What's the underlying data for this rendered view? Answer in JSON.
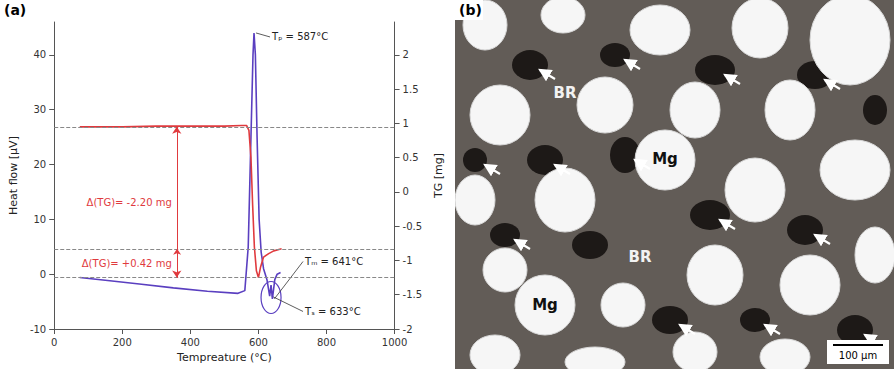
{
  "chart_data": {
    "type": "line",
    "panel_label": "(a)",
    "xlabel": "Tempreature (°C)",
    "ylabel": "Heat flow [μV]",
    "y2label": "TG [mg]",
    "xlim": [
      0,
      1000
    ],
    "xticks": [
      0,
      200,
      400,
      600,
      800,
      1000
    ],
    "ylim": [
      -10,
      46
    ],
    "yticks": [
      -10,
      0,
      10,
      20,
      30,
      40
    ],
    "y2lim": [
      -2,
      2.48
    ],
    "y2ticks": [
      -2,
      -1.5,
      -1,
      -0.5,
      0,
      0.5,
      1,
      1.5,
      2
    ],
    "grid": false,
    "series": [
      {
        "color": "#5a3fc0",
        "axis": "y",
        "x": [
          75,
          150,
          250,
          350,
          450,
          540,
          560,
          570,
          578,
          584,
          587,
          591,
          596,
          602,
          608,
          615,
          625,
          633,
          637,
          641,
          648,
          655,
          665
        ],
        "values": [
          -0.6,
          -1.1,
          -1.8,
          -2.5,
          -3.1,
          -3.5,
          -3.0,
          5,
          25,
          40,
          44,
          40,
          25,
          10,
          4,
          1,
          -1,
          -4,
          -2,
          -4.5,
          -1,
          0,
          0.3
        ]
      },
      {
        "color": "#e03a3e",
        "axis": "y2",
        "x": [
          75,
          200,
          300,
          400,
          500,
          550,
          565,
          572,
          578,
          583,
          588,
          594,
          600,
          606,
          615,
          630,
          645,
          660,
          668
        ],
        "values": [
          0.95,
          0.95,
          0.96,
          0.96,
          0.96,
          0.97,
          0.97,
          0.9,
          0.5,
          -0.2,
          -0.8,
          -1.15,
          -1.25,
          -1.1,
          -0.95,
          -0.9,
          -0.86,
          -0.84,
          -0.83
        ]
      }
    ],
    "annotations": [
      {
        "text": "Tₚ = 587°C",
        "x": 587,
        "y": 44
      },
      {
        "text": "Tₘ = 641°C",
        "x": 641,
        "y": -4.5
      },
      {
        "text": "Tₛ = 633°C",
        "x": 633,
        "y": -4
      }
    ],
    "tg_annotations": [
      {
        "text": "Δ(TG)= -2.20 mg",
        "color": "#e03a3e"
      },
      {
        "text": "Δ(TG)= +0.42 mg",
        "color": "#e03a3e"
      }
    ]
  },
  "micrograph": {
    "panel_label": "(b)",
    "labels": [
      "BR",
      "Mg",
      "BR",
      "Mg"
    ],
    "scale_bar": "100 μm"
  }
}
